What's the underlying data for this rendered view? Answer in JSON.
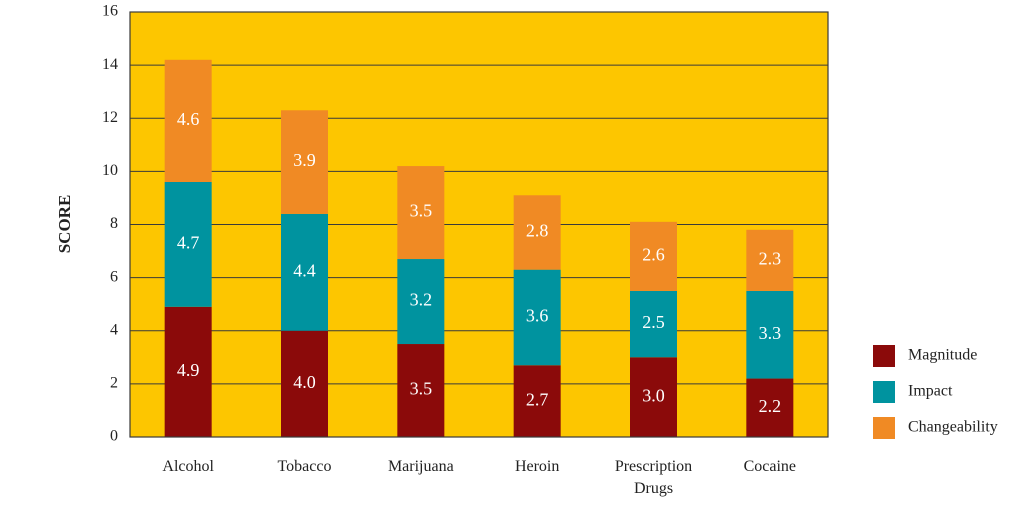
{
  "chart_data": {
    "type": "stacked_bar",
    "y_label": "SCORE",
    "categories": [
      "Alcohol",
      "Tobacco",
      "Marijuana",
      "Heroin",
      "Prescription Drugs",
      "Cocaine"
    ],
    "series": [
      {
        "name": "Magnitude",
        "color": "#8b0a0a",
        "values": [
          4.9,
          4.0,
          3.5,
          2.7,
          3.0,
          2.2
        ],
        "value_labels": [
          "4.9",
          "4.0",
          "3.5",
          "2.7",
          "3.0",
          "2.2"
        ]
      },
      {
        "name": "Impact",
        "color": "#00939f",
        "values": [
          4.7,
          4.4,
          3.2,
          3.6,
          2.5,
          3.3
        ],
        "value_labels": [
          "4.7",
          "4.4",
          "3.2",
          "3.6",
          "2.5",
          "3.3"
        ]
      },
      {
        "name": "Changeability",
        "color": "#f08a24",
        "values": [
          4.6,
          3.9,
          3.5,
          2.8,
          2.6,
          2.3
        ],
        "value_labels": [
          "4.6",
          "3.9",
          "3.5",
          "2.8",
          "2.6",
          "2.3"
        ]
      }
    ],
    "ylim": [
      0,
      16
    ],
    "yticks": [
      0,
      2,
      4,
      6,
      8,
      10,
      12,
      14,
      16
    ],
    "grid": true,
    "background": "#fdc600",
    "legend": "right"
  }
}
